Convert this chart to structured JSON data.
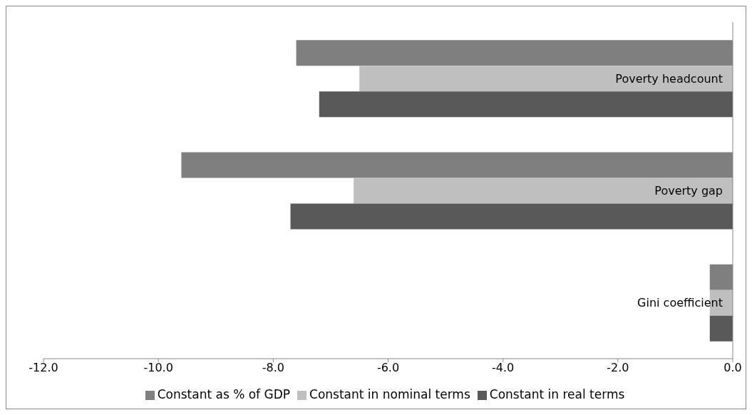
{
  "chart_data": {
    "type": "bar",
    "orientation": "horizontal",
    "categories": [
      "Poverty headcount",
      "Poverty gap",
      "Gini coefficient"
    ],
    "series": [
      {
        "name": "Constant as % of GDP",
        "color": "#7f7f7f",
        "values": [
          -7.6,
          -9.6,
          -0.4
        ]
      },
      {
        "name": "Constant in nominal terms",
        "color": "#bfbfbf",
        "values": [
          -6.5,
          -6.6,
          -0.4
        ]
      },
      {
        "name": "Constant in real terms",
        "color": "#595959",
        "values": [
          -7.2,
          -7.7,
          -0.4
        ]
      }
    ],
    "xlim": [
      -12,
      0
    ],
    "xticks": [
      {
        "value": -12,
        "label": "-12.0"
      },
      {
        "value": -10,
        "label": "-10.0"
      },
      {
        "value": -8,
        "label": "-8.0"
      },
      {
        "value": -6,
        "label": "-6.0"
      },
      {
        "value": -4,
        "label": "-4.0"
      },
      {
        "value": -2,
        "label": "-2.0"
      },
      {
        "value": 0,
        "label": "0.0"
      }
    ],
    "grid": false,
    "legend": "bottom"
  }
}
